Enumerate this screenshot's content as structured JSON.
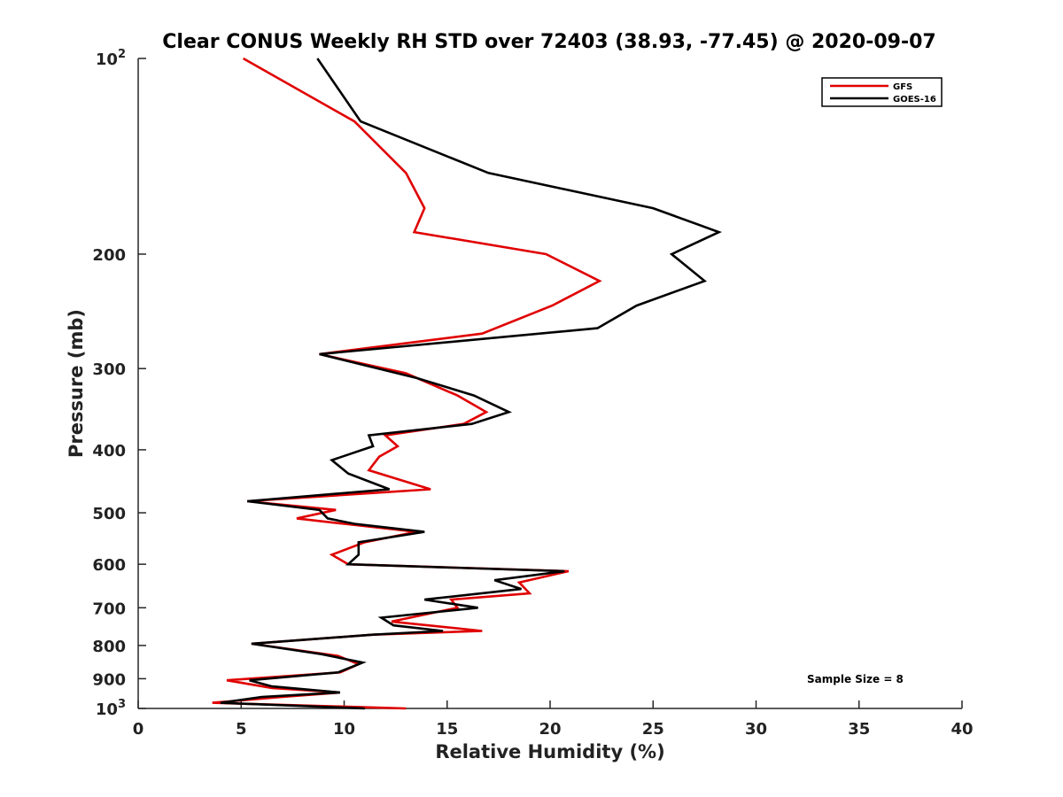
{
  "chart_data": {
    "type": "line",
    "title": "Clear CONUS Weekly RH STD over 72403 (38.93, -77.45) @ 2020-09-07",
    "xlabel": "Relative Humidity (%)",
    "ylabel": "Pressure (mb)",
    "xlim": [
      0,
      40
    ],
    "ylim": [
      100,
      1000
    ],
    "y_scale": "log",
    "y_reversed": true,
    "x_ticks": [
      "0",
      "5",
      "10",
      "15",
      "20",
      "25",
      "30",
      "35",
      "40"
    ],
    "y_ticks": [
      {
        "value": 100,
        "base": "10",
        "exp": "2"
      },
      {
        "value": 200,
        "label": "200"
      },
      {
        "value": 300,
        "label": "300"
      },
      {
        "value": 400,
        "label": "400"
      },
      {
        "value": 500,
        "label": "500"
      },
      {
        "value": 600,
        "label": "600"
      },
      {
        "value": 700,
        "label": "700"
      },
      {
        "value": 800,
        "label": "800"
      },
      {
        "value": 900,
        "label": "900"
      },
      {
        "value": 1000,
        "base": "10",
        "exp": "3"
      }
    ],
    "grid": false,
    "legend_position": "top-right",
    "annotation": "Sample Size = 8",
    "series": [
      {
        "name": "GFS",
        "color": "#e00000",
        "points": [
          [
            5.1,
            100
          ],
          [
            10.5,
            125
          ],
          [
            13.0,
            150
          ],
          [
            13.9,
            170
          ],
          [
            13.4,
            185
          ],
          [
            19.8,
            200
          ],
          [
            22.4,
            220
          ],
          [
            20.1,
            240
          ],
          [
            16.7,
            265
          ],
          [
            8.8,
            285
          ],
          [
            13.0,
            305
          ],
          [
            15.5,
            330
          ],
          [
            16.9,
            350
          ],
          [
            15.8,
            365
          ],
          [
            12.0,
            380
          ],
          [
            12.6,
            395
          ],
          [
            11.7,
            410
          ],
          [
            11.2,
            430
          ],
          [
            14.2,
            460
          ],
          [
            5.3,
            480
          ],
          [
            9.6,
            495
          ],
          [
            7.7,
            510
          ],
          [
            10.0,
            520
          ],
          [
            13.5,
            535
          ],
          [
            11.0,
            555
          ],
          [
            9.4,
            580
          ],
          [
            10.2,
            600
          ],
          [
            20.9,
            615
          ],
          [
            18.5,
            640
          ],
          [
            19.0,
            665
          ],
          [
            15.2,
            680
          ],
          [
            15.5,
            700
          ],
          [
            12.3,
            735
          ],
          [
            16.7,
            760
          ],
          [
            11.4,
            770
          ],
          [
            5.5,
            795
          ],
          [
            9.7,
            830
          ],
          [
            10.7,
            855
          ],
          [
            9.8,
            880
          ],
          [
            4.3,
            905
          ],
          [
            6.5,
            930
          ],
          [
            9.8,
            945
          ],
          [
            7.0,
            960
          ],
          [
            3.6,
            980
          ],
          [
            13.0,
            1000
          ]
        ]
      },
      {
        "name": "GOES-16",
        "color": "#000000",
        "points": [
          [
            8.7,
            100
          ],
          [
            10.8,
            125
          ],
          [
            17.0,
            150
          ],
          [
            25.0,
            170
          ],
          [
            28.2,
            185
          ],
          [
            25.9,
            200
          ],
          [
            27.5,
            220
          ],
          [
            24.2,
            240
          ],
          [
            22.3,
            260
          ],
          [
            8.8,
            285
          ],
          [
            13.5,
            310
          ],
          [
            16.3,
            330
          ],
          [
            18.0,
            350
          ],
          [
            16.2,
            365
          ],
          [
            11.2,
            380
          ],
          [
            11.4,
            395
          ],
          [
            9.4,
            415
          ],
          [
            10.2,
            435
          ],
          [
            12.2,
            460
          ],
          [
            5.3,
            480
          ],
          [
            8.8,
            495
          ],
          [
            9.2,
            510
          ],
          [
            10.5,
            520
          ],
          [
            13.9,
            535
          ],
          [
            10.7,
            555
          ],
          [
            10.7,
            580
          ],
          [
            10.2,
            600
          ],
          [
            20.7,
            615
          ],
          [
            17.3,
            635
          ],
          [
            18.6,
            655
          ],
          [
            13.9,
            680
          ],
          [
            16.5,
            700
          ],
          [
            11.8,
            725
          ],
          [
            12.4,
            745
          ],
          [
            14.8,
            760
          ],
          [
            11.4,
            770
          ],
          [
            5.5,
            795
          ],
          [
            8.9,
            825
          ],
          [
            10.9,
            850
          ],
          [
            9.7,
            880
          ],
          [
            5.4,
            905
          ],
          [
            6.5,
            925
          ],
          [
            9.8,
            945
          ],
          [
            6.0,
            960
          ],
          [
            4.0,
            980
          ],
          [
            11.0,
            1000
          ]
        ]
      }
    ]
  }
}
